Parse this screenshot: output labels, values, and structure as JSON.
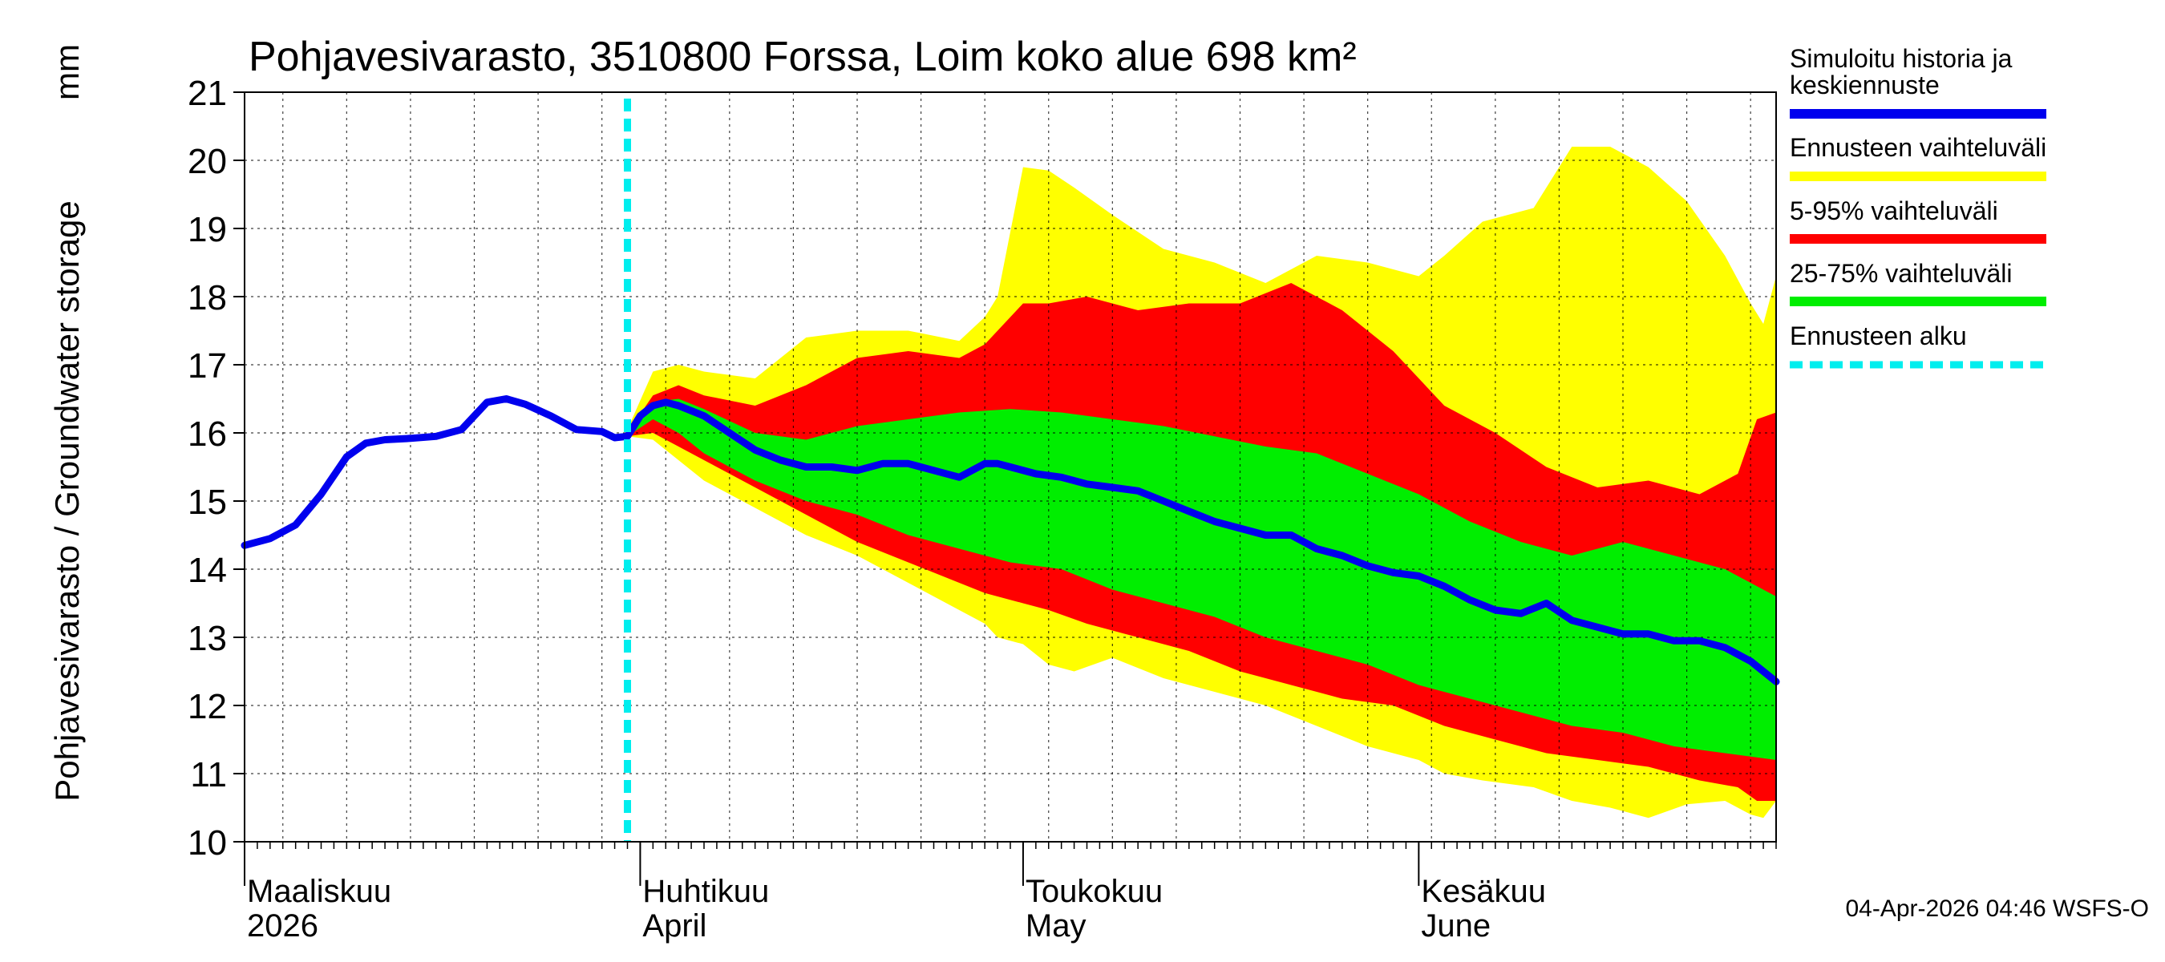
{
  "chart_data": {
    "type": "area",
    "title": "Pohjavesivarasto, 3510800 Forssa, Loim koko alue 698 km²",
    "ylabel": "Pohjavesivarasto / Groundwater storage",
    "yunit": "mm",
    "ylim": [
      10,
      21
    ],
    "yticks": [
      "10",
      "11",
      "12",
      "13",
      "14",
      "15",
      "16",
      "17",
      "18",
      "19",
      "20",
      "21"
    ],
    "x_domain_days": [
      0,
      120
    ],
    "month_labels": [
      {
        "day": 0,
        "fi": "Maaliskuu",
        "en": "2026"
      },
      {
        "day": 31,
        "fi": "Huhtikuu",
        "en": "April"
      },
      {
        "day": 61,
        "fi": "Toukokuu",
        "en": "May"
      },
      {
        "day": 92,
        "fi": "Kesäkuu",
        "en": "June"
      }
    ],
    "forecast_start_day": 30,
    "history": {
      "days": [
        0,
        2,
        4,
        6,
        8,
        9.5,
        11,
        13,
        15,
        17,
        19,
        20.5,
        22,
        24,
        26,
        28,
        29,
        30
      ],
      "values": [
        14.35,
        14.45,
        14.65,
        15.1,
        15.65,
        15.85,
        15.9,
        15.92,
        15.95,
        16.05,
        16.45,
        16.5,
        16.42,
        16.25,
        16.05,
        16.02,
        15.93,
        15.95
      ]
    },
    "series": [
      {
        "name": "Ennusteen vaihteluväli",
        "color": "#ffff00",
        "days": [
          30,
          32,
          34,
          36,
          40,
          44,
          48,
          52,
          56,
          58,
          59,
          61,
          63,
          65,
          68,
          72,
          76,
          80,
          84,
          88,
          92,
          94,
          97,
          101,
          104,
          107,
          110,
          113,
          116,
          118,
          119,
          120
        ],
        "upper": [
          16.05,
          16.9,
          17.0,
          16.9,
          16.8,
          17.4,
          17.5,
          17.5,
          17.35,
          17.7,
          18.0,
          19.9,
          19.85,
          19.6,
          19.2,
          18.7,
          18.5,
          18.2,
          18.6,
          18.5,
          18.3,
          18.6,
          19.1,
          19.3,
          20.2,
          20.2,
          19.9,
          19.4,
          18.6,
          17.9,
          17.6,
          18.3
        ],
        "lower": [
          15.95,
          15.9,
          15.6,
          15.3,
          14.9,
          14.5,
          14.2,
          13.8,
          13.4,
          13.2,
          13.0,
          12.9,
          12.6,
          12.5,
          12.7,
          12.4,
          12.2,
          12.0,
          11.7,
          11.4,
          11.2,
          11.0,
          10.9,
          10.8,
          10.6,
          10.5,
          10.35,
          10.55,
          10.6,
          10.4,
          10.35,
          10.6
        ]
      },
      {
        "name": "5-95% vaihteluväli",
        "color": "#ff0000",
        "days": [
          30,
          32,
          34,
          36,
          40,
          44,
          48,
          52,
          56,
          58,
          61,
          63,
          66,
          70,
          74,
          78,
          82,
          86,
          90,
          94,
          98,
          102,
          106,
          110,
          114,
          117,
          118.5,
          120
        ],
        "upper": [
          16.0,
          16.55,
          16.7,
          16.55,
          16.4,
          16.7,
          17.1,
          17.2,
          17.1,
          17.3,
          17.9,
          17.9,
          18.0,
          17.8,
          17.9,
          17.9,
          18.2,
          17.8,
          17.2,
          16.4,
          16.0,
          15.5,
          15.2,
          15.3,
          15.1,
          15.4,
          16.2,
          16.3
        ],
        "lower": [
          15.95,
          16.0,
          15.8,
          15.6,
          15.2,
          14.8,
          14.4,
          14.1,
          13.8,
          13.65,
          13.5,
          13.4,
          13.2,
          13.0,
          12.8,
          12.5,
          12.3,
          12.1,
          12.0,
          11.7,
          11.5,
          11.3,
          11.2,
          11.1,
          10.9,
          10.8,
          10.6,
          10.6
        ]
      },
      {
        "name": "25-75% vaihteluväli",
        "color": "#00ee00",
        "days": [
          30,
          32,
          34,
          36,
          40,
          44,
          48,
          52,
          56,
          60,
          64,
          68,
          72,
          76,
          80,
          84,
          88,
          92,
          96,
          100,
          104,
          108,
          112,
          116,
          120
        ],
        "upper": [
          15.95,
          16.45,
          16.5,
          16.35,
          16.0,
          15.9,
          16.1,
          16.2,
          16.3,
          16.35,
          16.3,
          16.2,
          16.1,
          15.95,
          15.8,
          15.7,
          15.4,
          15.1,
          14.7,
          14.4,
          14.2,
          14.4,
          14.2,
          14.0,
          13.6
        ],
        "lower": [
          15.95,
          16.2,
          16.0,
          15.7,
          15.3,
          15.0,
          14.8,
          14.5,
          14.3,
          14.1,
          14.0,
          13.7,
          13.5,
          13.3,
          13.0,
          12.8,
          12.6,
          12.3,
          12.1,
          11.9,
          11.7,
          11.6,
          11.4,
          11.3,
          11.2
        ]
      },
      {
        "name": "Simuloitu historia ja keskiennuste",
        "color": "#0000ee",
        "days": [
          30,
          31,
          32,
          33,
          34,
          36,
          38,
          40,
          42,
          44,
          46,
          48,
          50,
          52,
          54,
          56,
          58,
          59,
          60,
          62,
          64,
          66,
          68,
          70,
          72,
          74,
          76,
          78,
          80,
          82,
          84,
          86,
          88,
          90,
          92,
          94,
          96,
          98,
          100,
          102,
          104,
          106,
          108,
          110,
          112,
          114,
          116,
          118,
          120
        ],
        "values": [
          15.95,
          16.25,
          16.4,
          16.45,
          16.4,
          16.25,
          16.0,
          15.75,
          15.6,
          15.5,
          15.5,
          15.45,
          15.55,
          15.55,
          15.45,
          15.35,
          15.55,
          15.55,
          15.5,
          15.4,
          15.35,
          15.25,
          15.2,
          15.15,
          15.0,
          14.85,
          14.7,
          14.6,
          14.5,
          14.5,
          14.3,
          14.2,
          14.05,
          13.95,
          13.9,
          13.75,
          13.55,
          13.4,
          13.35,
          13.5,
          13.25,
          13.15,
          13.05,
          13.05,
          12.95,
          12.95,
          12.85,
          12.65,
          12.35
        ]
      }
    ]
  },
  "legend": [
    {
      "label": "Simuloitu historia ja keskiennuste",
      "line1": "Simuloitu historia ja",
      "line2": "keskiennuste",
      "color": "#0000ee",
      "style": "solid"
    },
    {
      "label": "Ennusteen vaihteluväli",
      "color": "#ffff00",
      "style": "solid"
    },
    {
      "label": "5-95% vaihteluväli",
      "color": "#ff0000",
      "style": "solid"
    },
    {
      "label": "25-75% vaihteluväli",
      "color": "#00ee00",
      "style": "solid"
    },
    {
      "label": "Ennusteen alku",
      "color": "#00eeee",
      "style": "dashed"
    }
  ],
  "footer": "04-Apr-2026 04:46 WSFS-O"
}
